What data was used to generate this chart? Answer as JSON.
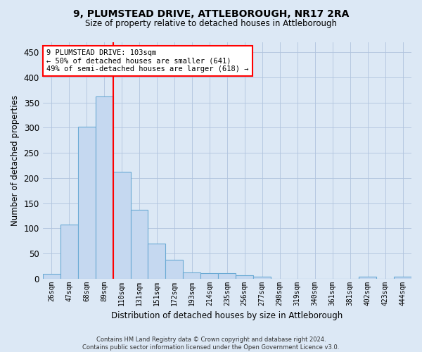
{
  "title": "9, PLUMSTEAD DRIVE, ATTLEBOROUGH, NR17 2RA",
  "subtitle": "Size of property relative to detached houses in Attleborough",
  "xlabel": "Distribution of detached houses by size in Attleborough",
  "ylabel": "Number of detached properties",
  "footer_line1": "Contains HM Land Registry data © Crown copyright and database right 2024.",
  "footer_line2": "Contains public sector information licensed under the Open Government Licence v3.0.",
  "bar_labels": [
    "26sqm",
    "47sqm",
    "68sqm",
    "89sqm",
    "110sqm",
    "131sqm",
    "151sqm",
    "172sqm",
    "193sqm",
    "214sqm",
    "235sqm",
    "256sqm",
    "277sqm",
    "298sqm",
    "319sqm",
    "340sqm",
    "361sqm",
    "381sqm",
    "402sqm",
    "423sqm",
    "444sqm"
  ],
  "bar_values": [
    9,
    108,
    302,
    362,
    212,
    137,
    69,
    38,
    12,
    11,
    10,
    6,
    4,
    0,
    0,
    0,
    0,
    0,
    4,
    0,
    4
  ],
  "bar_color": "#c5d8f0",
  "bar_edge_color": "#6aaad4",
  "vline_color": "red",
  "ylim": [
    0,
    470
  ],
  "yticks": [
    0,
    50,
    100,
    150,
    200,
    250,
    300,
    350,
    400,
    450
  ],
  "annotation_line1": "9 PLUMSTEAD DRIVE: 103sqm",
  "annotation_line2": "← 50% of detached houses are smaller (641)",
  "annotation_line3": "49% of semi-detached houses are larger (618) →",
  "annotation_box_color": "white",
  "annotation_box_edge_color": "red",
  "background_color": "#dce8f5",
  "grid_color": "#b0c4de",
  "figsize": [
    6.0,
    5.0
  ],
  "dpi": 100
}
